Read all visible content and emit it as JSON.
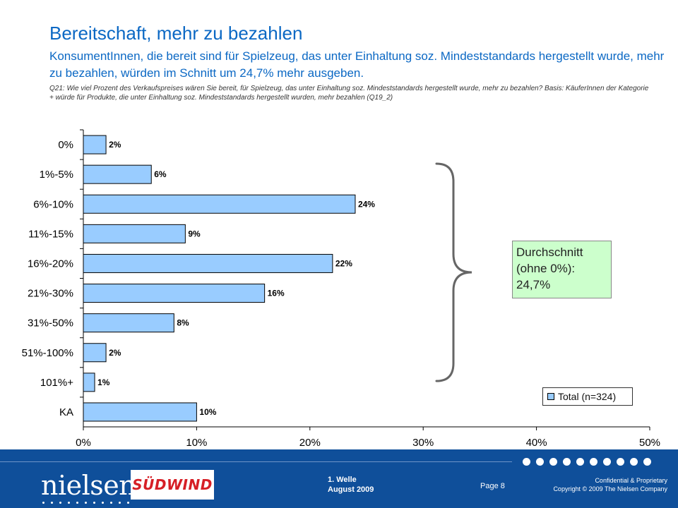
{
  "header": {
    "title": "Bereitschaft, mehr zu bezahlen",
    "subtitle": "KonsumentInnen, die bereit sind für Spielzeug, das unter Einhaltung soz. Mindeststandards hergestellt wurde, mehr zu bezahlen, würden im Schnitt um 24,7% mehr ausgeben.",
    "question": "Q21: Wie viel Prozent des Verkaufspreises wären Sie bereit, für Spielzeug, das unter Einhaltung soz. Mindeststandards hergestellt wurde, mehr zu bezahlen? Basis: KäuferInnen der Kategorie + würde für Produkte, die unter Einhaltung soz. Mindeststandards hergestellt wurden, mehr bezahlen (Q19_2)"
  },
  "chart_data": {
    "type": "bar",
    "orientation": "horizontal",
    "categories": [
      "0%",
      "1%-5%",
      "6%-10%",
      "11%-15%",
      "16%-20%",
      "21%-30%",
      "31%-50%",
      "51%-100%",
      "101%+",
      "KA"
    ],
    "series": [
      {
        "name": "Total (n=324)",
        "values": [
          2,
          6,
          24,
          9,
          22,
          16,
          8,
          2,
          1,
          10
        ],
        "labels": [
          "2%",
          "6%",
          "24%",
          "9%",
          "22%",
          "16%",
          "8%",
          "2%",
          "1%",
          "10%"
        ]
      }
    ],
    "xlim": [
      0,
      50
    ],
    "xticks": [
      0,
      10,
      20,
      30,
      40,
      50
    ],
    "xtick_labels": [
      "0%",
      "10%",
      "20%",
      "30%",
      "40%",
      "50%"
    ],
    "bar_color": "#99ccff",
    "legend_position": "bottom-right"
  },
  "callout": {
    "line1": "Durchschnitt",
    "line2": "(ohne 0%):",
    "line3": "24,7%"
  },
  "footer": {
    "brand": "nielsen",
    "partner_logo": "SÜDWIND",
    "wave": "1. Welle",
    "date": "August 2009",
    "page": "Page 8",
    "confidential": "Confidential & Proprietary",
    "copyright": "Copyright © 2009 The Nielsen Company"
  }
}
